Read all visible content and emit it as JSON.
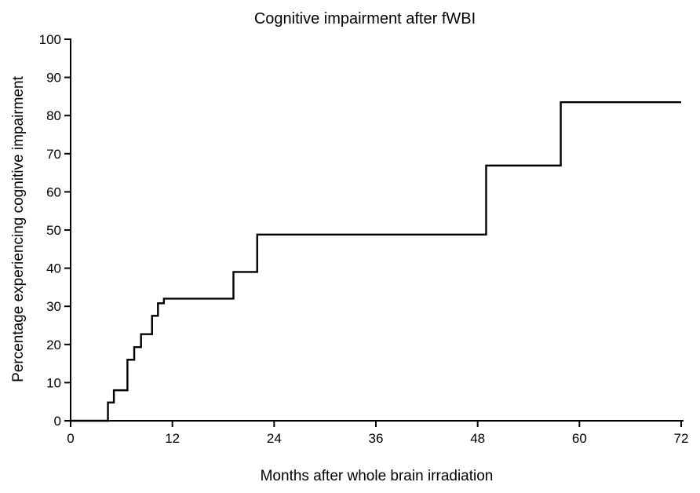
{
  "chart_data": {
    "type": "line",
    "title": "Cognitive impairment after fWBI",
    "xlabel": "Months after whole brain irradiation",
    "ylabel": "Percentage experiencing cognitive impairment",
    "xlim": [
      0,
      72
    ],
    "ylim": [
      0,
      100
    ],
    "xticks": [
      0,
      12,
      24,
      36,
      48,
      60,
      72
    ],
    "yticks": [
      0,
      10,
      20,
      30,
      40,
      50,
      60,
      70,
      80,
      90,
      100
    ],
    "grid": false,
    "line_color": "#000000",
    "series": [
      {
        "step": "post",
        "x": [
          0,
          4.4,
          5.1,
          6.7,
          7.5,
          8.3,
          9.6,
          10.3,
          11.0,
          19.2,
          22.0,
          49.0,
          57.8,
          72.0
        ],
        "y": [
          0,
          4.8,
          8.0,
          16.0,
          19.3,
          22.7,
          27.5,
          30.8,
          32.0,
          39.0,
          48.8,
          66.9,
          83.5,
          83.5
        ]
      }
    ]
  }
}
